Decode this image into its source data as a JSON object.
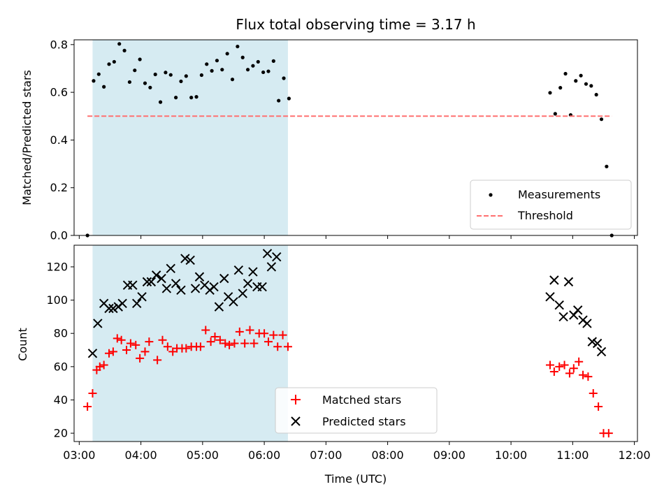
{
  "chart_data": {
    "type": "scatter",
    "title": "Flux total observing time = 3.17 h",
    "xlabel": "Time (UTC)",
    "x_ticks": [
      "03:00",
      "04:00",
      "05:00",
      "06:00",
      "07:00",
      "08:00",
      "09:00",
      "10:00",
      "11:00",
      "12:00"
    ],
    "xlim": [
      "02:55",
      "12:03"
    ],
    "shaded_interval": [
      "03:13",
      "06:23"
    ],
    "panels": [
      {
        "ylabel": "Matched/Predicted stars",
        "ylim": [
          0,
          0.82
        ],
        "yticks": [
          "0.0",
          "0.2",
          "0.4",
          "0.6",
          "0.8"
        ],
        "legend_position": "lower right",
        "series": [
          {
            "name": "Measurements",
            "marker": "dot",
            "color": "#000000",
            "points": [
              [
                "03:08",
                0.0
              ],
              [
                "03:14",
                0.648
              ],
              [
                "03:19",
                0.676
              ],
              [
                "03:24",
                0.623
              ],
              [
                "03:29",
                0.718
              ],
              [
                "03:34",
                0.728
              ],
              [
                "03:39",
                0.803
              ],
              [
                "03:44",
                0.775
              ],
              [
                "03:49",
                0.643
              ],
              [
                "03:54",
                0.692
              ],
              [
                "03:59",
                0.738
              ],
              [
                "04:04",
                0.638
              ],
              [
                "04:09",
                0.62
              ],
              [
                "04:14",
                0.675
              ],
              [
                "04:19",
                0.559
              ],
              [
                "04:24",
                0.683
              ],
              [
                "04:29",
                0.673
              ],
              [
                "04:34",
                0.578
              ],
              [
                "04:39",
                0.646
              ],
              [
                "04:44",
                0.668
              ],
              [
                "04:49",
                0.578
              ],
              [
                "04:54",
                0.581
              ],
              [
                "04:59",
                0.672
              ],
              [
                "05:04",
                0.718
              ],
              [
                "05:09",
                0.69
              ],
              [
                "05:14",
                0.733
              ],
              [
                "05:19",
                0.695
              ],
              [
                "05:24",
                0.762
              ],
              [
                "05:29",
                0.654
              ],
              [
                "05:34",
                0.792
              ],
              [
                "05:39",
                0.746
              ],
              [
                "05:44",
                0.695
              ],
              [
                "05:49",
                0.711
              ],
              [
                "05:54",
                0.728
              ],
              [
                "05:59",
                0.684
              ],
              [
                "06:04",
                0.688
              ],
              [
                "06:09",
                0.731
              ],
              [
                "06:14",
                0.565
              ],
              [
                "06:19",
                0.659
              ],
              [
                "06:24",
                0.574
              ],
              [
                "10:38",
                0.598
              ],
              [
                "10:43",
                0.51
              ],
              [
                "10:48",
                0.619
              ],
              [
                "10:53",
                0.678
              ],
              [
                "10:58",
                0.505
              ],
              [
                "11:03",
                0.648
              ],
              [
                "11:08",
                0.67
              ],
              [
                "11:13",
                0.635
              ],
              [
                "11:18",
                0.627
              ],
              [
                "11:23",
                0.59
              ],
              [
                "11:28",
                0.487
              ],
              [
                "11:33",
                0.289
              ],
              [
                "11:38",
                0.0
              ]
            ]
          },
          {
            "name": "Threshold",
            "marker": "dashed-line",
            "color": "#ff7070",
            "points": [
              [
                "03:08",
                0.5
              ],
              [
                "11:38",
                0.5
              ]
            ]
          }
        ]
      },
      {
        "ylabel": "Count",
        "ylim": [
          15,
          133
        ],
        "yticks": [
          "20",
          "40",
          "60",
          "80",
          "100",
          "120"
        ],
        "legend_position": "lower center",
        "series": [
          {
            "name": "Matched stars",
            "marker": "plus",
            "color": "#ff0000",
            "points": [
              [
                "03:08",
                36
              ],
              [
                "03:13",
                44
              ],
              [
                "03:17",
                58
              ],
              [
                "03:20",
                60
              ],
              [
                "03:24",
                61
              ],
              [
                "03:29",
                68
              ],
              [
                "03:33",
                69
              ],
              [
                "03:37",
                77
              ],
              [
                "03:41",
                76
              ],
              [
                "03:46",
                70
              ],
              [
                "03:50",
                74
              ],
              [
                "03:55",
                73
              ],
              [
                "03:59",
                65
              ],
              [
                "04:04",
                69
              ],
              [
                "04:08",
                75
              ],
              [
                "04:16",
                64
              ],
              [
                "04:21",
                76
              ],
              [
                "04:26",
                72
              ],
              [
                "04:31",
                69
              ],
              [
                "04:35",
                71
              ],
              [
                "04:40",
                71
              ],
              [
                "04:44",
                71
              ],
              [
                "04:49",
                72
              ],
              [
                "04:54",
                72
              ],
              [
                "04:58",
                72
              ],
              [
                "05:03",
                82
              ],
              [
                "05:08",
                75
              ],
              [
                "05:12",
                78
              ],
              [
                "05:17",
                76
              ],
              [
                "05:22",
                74
              ],
              [
                "05:26",
                73
              ],
              [
                "05:31",
                74
              ],
              [
                "05:36",
                81
              ],
              [
                "05:41",
                74
              ],
              [
                "05:46",
                82
              ],
              [
                "05:50",
                74
              ],
              [
                "05:55",
                80
              ],
              [
                "06:00",
                80
              ],
              [
                "06:04",
                75
              ],
              [
                "06:09",
                79
              ],
              [
                "06:13",
                72
              ],
              [
                "06:18",
                79
              ],
              [
                "06:23",
                72
              ],
              [
                "10:38",
                61
              ],
              [
                "10:42",
                57
              ],
              [
                "10:47",
                60
              ],
              [
                "10:52",
                61
              ],
              [
                "10:57",
                56
              ],
              [
                "11:01",
                59
              ],
              [
                "11:06",
                63
              ],
              [
                "11:10",
                55
              ],
              [
                "11:15",
                54
              ],
              [
                "11:20",
                44
              ],
              [
                "11:25",
                36
              ],
              [
                "11:30",
                20
              ],
              [
                "11:35",
                20
              ]
            ]
          },
          {
            "name": "Predicted stars",
            "marker": "x",
            "color": "#000000",
            "points": [
              [
                "03:13",
                68
              ],
              [
                "03:18",
                86
              ],
              [
                "03:24",
                98
              ],
              [
                "03:29",
                95
              ],
              [
                "03:33",
                95
              ],
              [
                "03:38",
                96
              ],
              [
                "03:42",
                98
              ],
              [
                "03:47",
                109
              ],
              [
                "03:52",
                109
              ],
              [
                "03:56",
                98
              ],
              [
                "04:01",
                102
              ],
              [
                "04:06",
                111
              ],
              [
                "04:10",
                111
              ],
              [
                "04:15",
                115
              ],
              [
                "04:20",
                113
              ],
              [
                "04:25",
                107
              ],
              [
                "04:29",
                119
              ],
              [
                "04:34",
                110
              ],
              [
                "04:39",
                106
              ],
              [
                "04:43",
                125
              ],
              [
                "04:48",
                124
              ],
              [
                "04:53",
                107
              ],
              [
                "04:57",
                114
              ],
              [
                "05:02",
                109
              ],
              [
                "05:07",
                106
              ],
              [
                "05:11",
                108
              ],
              [
                "05:16",
                96
              ],
              [
                "05:21",
                113
              ],
              [
                "05:25",
                102
              ],
              [
                "05:30",
                99
              ],
              [
                "05:35",
                118
              ],
              [
                "05:39",
                104
              ],
              [
                "05:44",
                110
              ],
              [
                "05:49",
                117
              ],
              [
                "05:53",
                108
              ],
              [
                "05:58",
                108
              ],
              [
                "06:03",
                128
              ],
              [
                "06:07",
                120
              ],
              [
                "06:12",
                126
              ],
              [
                "10:38",
                102
              ],
              [
                "10:42",
                112
              ],
              [
                "10:47",
                97
              ],
              [
                "10:51",
                90
              ],
              [
                "10:56",
                111
              ],
              [
                "11:01",
                91
              ],
              [
                "11:05",
                94
              ],
              [
                "11:10",
                88
              ],
              [
                "11:14",
                86
              ],
              [
                "11:19",
                75
              ],
              [
                "11:24",
                74
              ],
              [
                "11:28",
                69
              ]
            ]
          }
        ]
      }
    ]
  }
}
